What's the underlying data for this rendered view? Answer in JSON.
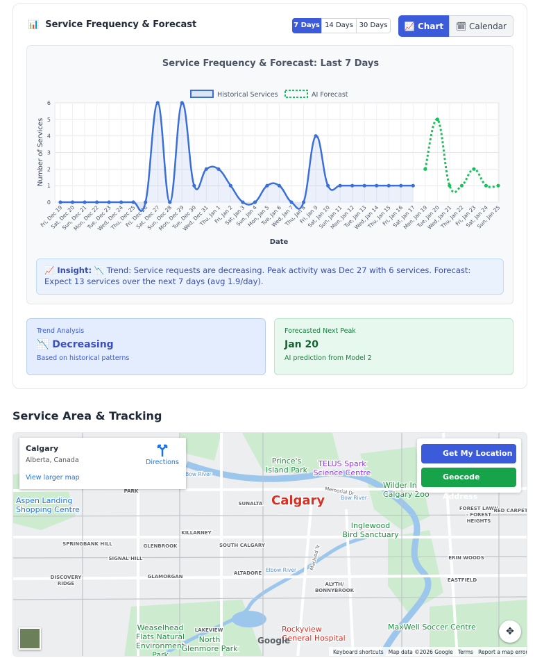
{
  "header": {
    "icon": "📊",
    "title": "Service Frequency & Forecast",
    "ranges": [
      "7 Days",
      "14 Days",
      "30 Days"
    ],
    "views": [
      "📈 Chart",
      "🗓 Calendar"
    ]
  },
  "chart_data": {
    "type": "line",
    "title": "Service Frequency & Forecast: Last 7 Days",
    "x_label": "Date",
    "y_label": "Number of Services",
    "categories": [
      "Fri, Dec 19",
      "Sat, Dec 20",
      "Sun, Dec 21",
      "Mon, Dec 22",
      "Tue, Dec 23",
      "Wed, Dec 24",
      "Thu, Dec 25",
      "Fri, Dec 26",
      "Sat, Dec 27",
      "Sun, Dec 28",
      "Mon, Dec 29",
      "Tue, Dec 30",
      "Wed, Dec 31",
      "Thu, Jan 1",
      "Fri, Jan 2",
      "Sat, Jan 3",
      "Sun, Jan 4",
      "Mon, Jan 5",
      "Tue, Jan 6",
      "Wed, Jan 7",
      "Thu, Jan 8",
      "Fri, Jan 9",
      "Sat, Jan 10",
      "Sun, Jan 11",
      "Mon, Jan 12",
      "Tue, Jan 13",
      "Wed, Jan 14",
      "Thu, Jan 15",
      "Fri, Jan 16",
      "Sat, Jan 17",
      "Mon, Jan 19",
      "Tue, Jan 20",
      "Wed, Jan 21",
      "Thu, Jan 22",
      "Fri, Jan 23",
      "Sat, Jan 24",
      "Sun, Jan 25"
    ],
    "series": [
      {
        "name": "Historical Services",
        "color": "#3b6fd8",
        "values": [
          0,
          0,
          0,
          0,
          0,
          0,
          0,
          0,
          6,
          0,
          6,
          1,
          2,
          2,
          1,
          0,
          0,
          1,
          1,
          0,
          0,
          4,
          1,
          1,
          1,
          1,
          1,
          1,
          1,
          1,
          null,
          null,
          null,
          null,
          null,
          null,
          null
        ]
      },
      {
        "name": "AI Forecast",
        "color": "#16c25a",
        "dashed": true,
        "values": [
          null,
          null,
          null,
          null,
          null,
          null,
          null,
          null,
          null,
          null,
          null,
          null,
          null,
          null,
          null,
          null,
          null,
          null,
          null,
          null,
          null,
          null,
          null,
          null,
          null,
          null,
          null,
          null,
          null,
          null,
          2,
          5,
          1,
          1,
          2,
          1,
          1
        ]
      }
    ],
    "ylim": [
      0,
      6
    ],
    "yticks": [
      0,
      1,
      2,
      3,
      4,
      5,
      6
    ],
    "grid": true,
    "legend": "top"
  },
  "insight": {
    "label": "📈 Insight:",
    "text": "📉 Trend: Service requests are decreasing. Peak activity was Dec 27 with 6 services. Forecast: Expect 13 services over the next 7 days (avg 1.9/day)."
  },
  "trend_card": {
    "label": "Trend Analysis",
    "value": "📉 Decreasing",
    "note": "Based on historical patterns"
  },
  "forecast_card": {
    "label": "Forecasted Next Peak",
    "value": "Jan 20",
    "note": "AI prediction from Model 2"
  },
  "map_section": {
    "title": "Service Area & Tracking",
    "place": "Calgary",
    "region": "Alberta, Canada",
    "directions": "Directions",
    "larger": "View larger map",
    "buttons": [
      "Get My Location",
      "Geocode Address"
    ],
    "places": [
      {
        "lines": [
          "Calgary"
        ]
      },
      {
        "lines": [
          "Prince's",
          "Island Park"
        ]
      },
      {
        "lines": [
          "TELUS Spark",
          "Science Centre"
        ]
      },
      {
        "lines": [
          "Wilder Institute/",
          "Calgary Zoo"
        ]
      },
      {
        "lines": [
          "Bow River"
        ]
      },
      {
        "lines": [
          "Bow River"
        ]
      },
      {
        "lines": [
          "SUNALTA"
        ]
      },
      {
        "lines": [
          "PARK"
        ]
      },
      {
        "lines": [
          "Aspen Landing",
          "Shopping Centre"
        ]
      },
      {
        "lines": [
          "SPRINGBANK HILL"
        ]
      },
      {
        "lines": [
          "KILLARNEY"
        ]
      },
      {
        "lines": [
          "GLENBROOK"
        ]
      },
      {
        "lines": [
          "SOUTH CALGARY"
        ]
      },
      {
        "lines": [
          "SIGNAL HILL"
        ]
      },
      {
        "lines": [
          "DISCOVERY",
          "RIDGE"
        ]
      },
      {
        "lines": [
          "GLAMORGAN"
        ]
      },
      {
        "lines": [
          "ALTADORE"
        ]
      },
      {
        "lines": [
          "ALYTH/",
          "BONNYBROOK"
        ]
      },
      {
        "lines": [
          "Inglewood",
          "Bird Sanctuary"
        ]
      },
      {
        "lines": [
          "FOREST LAWN",
          "- FOREST",
          "HEIGHTS"
        ]
      },
      {
        "lines": [
          "RED CARPET"
        ]
      },
      {
        "lines": [
          "ERIN WOODS"
        ]
      },
      {
        "lines": [
          "EASTFIELD"
        ]
      },
      {
        "lines": [
          "Weaselhead",
          "Flats Natural",
          "Environment",
          "Park"
        ]
      },
      {
        "lines": [
          "LAKEVIEW"
        ]
      },
      {
        "lines": [
          "North",
          "Glenmore Park"
        ]
      },
      {
        "lines": [
          "Rockyview",
          "General Hospital"
        ]
      },
      {
        "lines": [
          "MaxWell Soccer Centre"
        ]
      },
      {
        "lines": [
          "Elbow River"
        ]
      },
      {
        "lines": [
          "Macleod Tr"
        ]
      },
      {
        "lines": [
          "Memorial Dr"
        ]
      }
    ],
    "footer": [
      "Keyboard shortcuts",
      "Map data ©2026 Google",
      "Terms",
      "Report a map error"
    ],
    "logo": "Google"
  }
}
